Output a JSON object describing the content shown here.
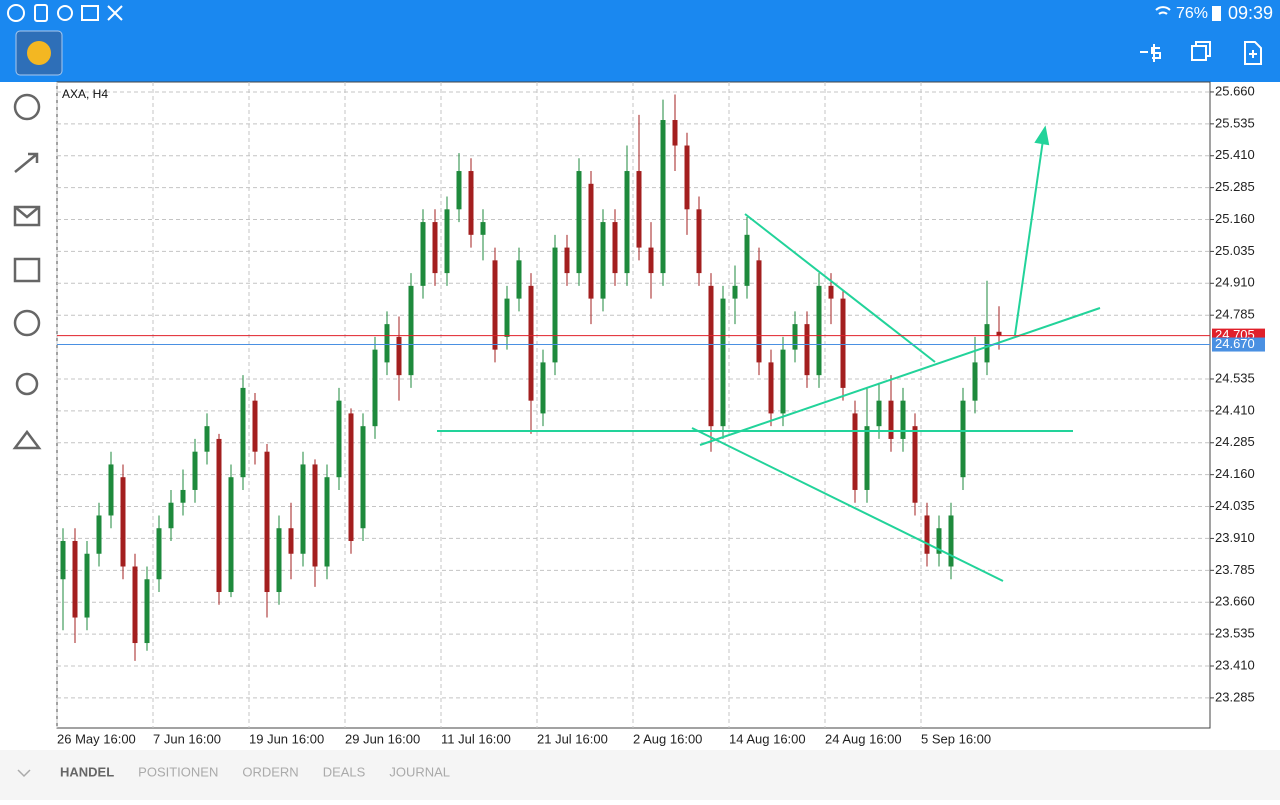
{
  "status_bar": {
    "battery": "76%",
    "time": "09:39"
  },
  "chart_data": {
    "type": "candlestick",
    "title": "AXA, H4",
    "categories": [
      "26 May 16:00",
      null,
      null,
      null,
      null,
      null,
      null,
      null,
      "7 Jun 16:00",
      null,
      null,
      null,
      null,
      null,
      null,
      null,
      "19 Jun 16:00",
      null,
      null,
      null,
      null,
      null,
      null,
      null,
      "29 Jun 16:00",
      null,
      null,
      null,
      null,
      null,
      null,
      null,
      "11 Jul 16:00",
      null,
      null,
      null,
      null,
      null,
      null,
      null,
      "21 Jul 16:00",
      null,
      null,
      null,
      null,
      null,
      null,
      null,
      "2 Aug 16:00",
      null,
      null,
      null,
      null,
      null,
      null,
      null,
      "14 Aug 16:00",
      null,
      null,
      null,
      null,
      null,
      null,
      null,
      "24 Aug 16:00",
      null,
      null,
      null,
      null,
      null,
      null,
      null,
      "5 Sep 16:00",
      null,
      null,
      null,
      null,
      null,
      null
    ],
    "open": [
      23.75,
      23.9,
      23.6,
      23.85,
      24.0,
      24.15,
      23.8,
      23.5,
      23.75,
      23.95,
      24.05,
      24.1,
      24.25,
      24.3,
      23.7,
      24.15,
      24.45,
      24.25,
      23.7,
      23.95,
      23.85,
      24.2,
      23.8,
      24.15,
      24.4,
      23.95,
      24.35,
      24.6,
      24.7,
      24.55,
      24.9,
      25.15,
      24.95,
      25.2,
      25.35,
      25.1,
      25.0,
      24.7,
      24.85,
      24.9,
      24.4,
      24.6,
      25.05,
      24.95,
      25.3,
      24.85,
      25.15,
      24.95,
      25.35,
      25.05,
      24.95,
      25.55,
      25.45,
      25.2,
      24.9,
      24.35,
      24.85,
      24.9,
      25.0,
      24.6,
      24.4,
      24.65,
      24.75,
      24.55,
      24.9,
      24.85,
      24.4,
      24.1,
      24.35,
      24.45,
      24.3,
      24.35,
      24.0,
      23.85,
      23.8,
      24.15,
      24.45,
      24.6,
      24.72
    ],
    "high": [
      23.95,
      23.95,
      23.9,
      24.05,
      24.25,
      24.2,
      23.85,
      23.8,
      24.0,
      24.1,
      24.18,
      24.3,
      24.4,
      24.32,
      24.2,
      24.55,
      24.48,
      24.28,
      24.0,
      24.05,
      24.25,
      24.22,
      24.2,
      24.5,
      24.42,
      24.4,
      24.7,
      24.8,
      24.78,
      24.95,
      25.2,
      25.2,
      25.25,
      25.42,
      25.4,
      25.2,
      25.05,
      24.9,
      25.05,
      24.95,
      24.65,
      25.1,
      25.1,
      25.4,
      25.35,
      25.2,
      25.2,
      25.45,
      25.57,
      25.15,
      25.63,
      25.65,
      25.5,
      25.25,
      24.95,
      24.9,
      24.98,
      25.17,
      25.05,
      24.65,
      24.7,
      24.8,
      24.8,
      24.95,
      24.95,
      24.88,
      24.45,
      24.5,
      24.52,
      24.55,
      24.5,
      24.4,
      24.05,
      24.0,
      24.05,
      24.5,
      24.7,
      24.92,
      24.82
    ],
    "low": [
      23.55,
      23.5,
      23.55,
      23.8,
      23.95,
      23.75,
      23.43,
      23.47,
      23.7,
      23.9,
      24.0,
      24.05,
      24.2,
      23.65,
      23.68,
      24.1,
      24.2,
      23.6,
      23.65,
      23.75,
      23.8,
      23.72,
      23.75,
      24.1,
      23.85,
      23.9,
      24.3,
      24.55,
      24.45,
      24.5,
      24.85,
      24.9,
      24.9,
      25.15,
      25.05,
      25.0,
      24.6,
      24.65,
      24.8,
      24.32,
      24.35,
      24.55,
      24.9,
      24.9,
      24.75,
      24.8,
      24.9,
      24.9,
      25.0,
      24.85,
      24.9,
      25.35,
      25.1,
      24.9,
      24.25,
      24.3,
      24.75,
      24.85,
      24.55,
      24.35,
      24.35,
      24.6,
      24.5,
      24.5,
      24.75,
      24.45,
      24.05,
      24.05,
      24.3,
      24.25,
      24.25,
      24.0,
      23.8,
      23.8,
      23.75,
      24.1,
      24.4,
      24.55,
      24.65
    ],
    "close": [
      23.9,
      23.6,
      23.85,
      24.0,
      24.2,
      23.8,
      23.5,
      23.75,
      23.95,
      24.05,
      24.1,
      24.25,
      24.35,
      23.7,
      24.15,
      24.5,
      24.25,
      23.7,
      23.95,
      23.85,
      24.2,
      23.8,
      24.15,
      24.45,
      23.9,
      24.35,
      24.65,
      24.75,
      24.55,
      24.9,
      25.15,
      24.95,
      25.2,
      25.35,
      25.1,
      25.15,
      24.65,
      24.85,
      25.0,
      24.45,
      24.6,
      25.05,
      24.95,
      25.35,
      24.85,
      25.15,
      24.95,
      25.35,
      25.05,
      24.95,
      25.55,
      25.45,
      25.2,
      24.95,
      24.35,
      24.85,
      24.9,
      25.1,
      24.6,
      24.4,
      24.65,
      24.75,
      24.55,
      24.9,
      24.85,
      24.5,
      24.1,
      24.35,
      24.45,
      24.3,
      24.45,
      24.05,
      23.85,
      23.95,
      24.0,
      24.45,
      24.6,
      24.75,
      24.705
    ],
    "up_color": "#1e8a3c",
    "down_color": "#a31f1f",
    "ylim": [
      23.167,
      25.699
    ],
    "yticks": [
      {
        "value": 25.66,
        "label": "25.660"
      },
      25.535,
      {
        "value": 25.41,
        "label": "25.410"
      },
      25.285,
      {
        "value": 25.16,
        "label": "25.160"
      },
      25.035,
      {
        "value": 24.91,
        "label": "24.910"
      },
      24.785,
      24.535,
      {
        "value": 24.41,
        "label": "24.410"
      },
      24.285,
      {
        "value": 24.16,
        "label": "24.160"
      },
      24.035,
      {
        "value": 23.91,
        "label": "23.910"
      },
      23.785,
      {
        "value": 23.66,
        "label": "23.660"
      },
      23.535,
      {
        "value": 23.41,
        "label": "23.410"
      },
      23.285
    ],
    "grid": true,
    "bid": 24.705,
    "bid_color": "#e0202a",
    "ask": {
      "value": 24.67,
      "label": "24.670"
    },
    "ask_color": "#4a90e2"
  },
  "tabs": [
    "HANDEL",
    "POSITIONEN",
    "ORDERN",
    "DEALS",
    "JOURNAL"
  ]
}
